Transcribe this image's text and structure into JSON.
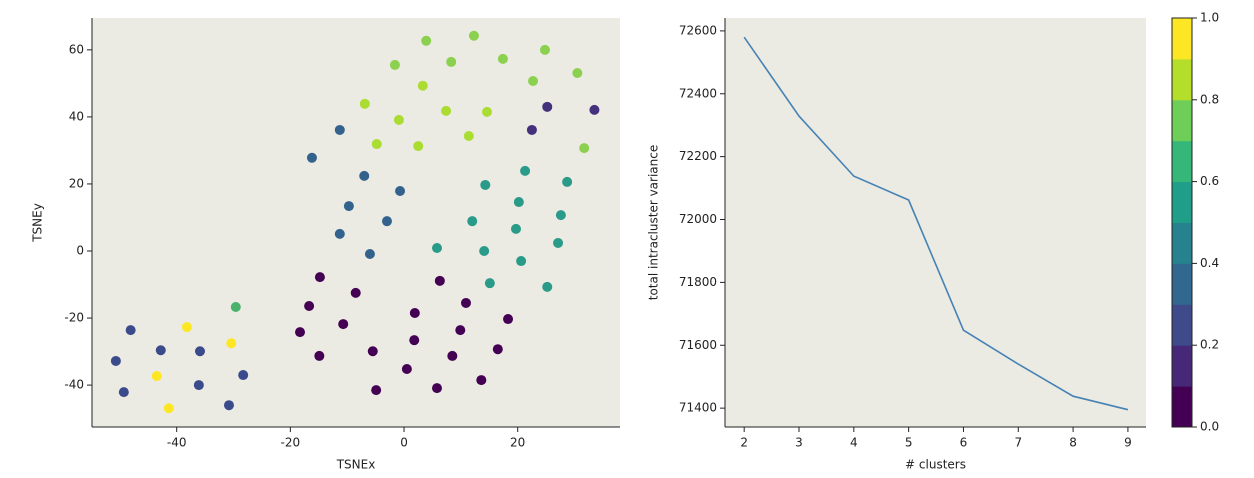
{
  "chart_data": [
    {
      "type": "scatter",
      "xlabel": "TSNEx",
      "ylabel": "TSNEy",
      "xlim": [
        -54.9,
        38
      ],
      "ylim": [
        -52.5,
        69.5
      ],
      "xticks": [
        -40,
        -20,
        0,
        20
      ],
      "yticks": [
        -40,
        -20,
        0,
        20,
        40,
        60
      ],
      "background": "#ebebe4",
      "x": [
        -38.2,
        -30.4,
        -43.5,
        -41.4,
        -29.6,
        -48.1,
        -50.7,
        -49.3,
        -42.8,
        -35.9,
        -36.1,
        -30.8,
        -28.3,
        -14.8,
        -16.7,
        -8.5,
        -18.3,
        -10.7,
        -14.9,
        -5.5,
        -4.9,
        1.9,
        1.8,
        6.3,
        10.9,
        9.9,
        8.5,
        16.5,
        18.3,
        0.5,
        5.8,
        13.6,
        -16.2,
        -11.3,
        -7.0,
        -9.7,
        -11.3,
        -3.0,
        -0.7,
        -6.0,
        -1.6,
        3.9,
        8.3,
        12.3,
        17.4,
        24.8,
        30.5,
        3.3,
        -6.9,
        -0.9,
        7.4,
        14.6,
        22.7,
        -4.8,
        2.5,
        11.4,
        31.7,
        21.3,
        14.3,
        28.7,
        20.2,
        12.0,
        19.7,
        27.6,
        5.8,
        14.1,
        27.1,
        20.6,
        15.1,
        25.2,
        25.2,
        33.5,
        22.5
      ],
      "y": [
        -22.7,
        -27.5,
        -37.3,
        -46.9,
        -16.7,
        -23.6,
        -32.8,
        -42.1,
        -29.6,
        -29.9,
        -40.0,
        -46.0,
        -37.0,
        -7.8,
        -16.4,
        -12.5,
        -24.2,
        -21.8,
        -31.3,
        -29.9,
        -41.5,
        -18.5,
        -26.6,
        -8.9,
        -15.5,
        -23.6,
        -31.3,
        -29.3,
        -20.3,
        -35.2,
        -40.9,
        -38.5,
        27.8,
        36.1,
        22.4,
        13.4,
        5.1,
        8.9,
        17.9,
        -0.9,
        55.5,
        62.7,
        56.4,
        64.2,
        57.3,
        60.0,
        53.1,
        49.3,
        43.9,
        39.1,
        41.8,
        41.5,
        50.7,
        31.9,
        31.3,
        34.3,
        30.7,
        23.9,
        19.7,
        20.6,
        14.6,
        8.9,
        6.6,
        10.7,
        0.9,
        0.0,
        2.4,
        -3.0,
        -9.6,
        -10.7,
        43.0,
        42.1,
        36.1
      ],
      "colors": [
        "#fde725",
        "#fde725",
        "#fde725",
        "#fde725",
        "#4ab26b",
        "#3b4a8b",
        "#3b4a8b",
        "#3b4a8b",
        "#3b4a8b",
        "#3b4a8b",
        "#3b4a8b",
        "#3b4a8b",
        "#3b4a8b",
        "#440154",
        "#440154",
        "#440154",
        "#440154",
        "#440154",
        "#440154",
        "#440154",
        "#440154",
        "#440154",
        "#440154",
        "#440154",
        "#440154",
        "#440154",
        "#440154",
        "#440154",
        "#440154",
        "#440154",
        "#440154",
        "#440154",
        "#33638d",
        "#33638d",
        "#33638d",
        "#33638d",
        "#33638d",
        "#33638d",
        "#33638d",
        "#33638d",
        "#8bd04f",
        "#8bd04f",
        "#8bd04f",
        "#8bd04f",
        "#8bd04f",
        "#8bd04f",
        "#8bd04f",
        "#aadc32",
        "#aadc32",
        "#aadc32",
        "#aadc32",
        "#aadc32",
        "#8bd04f",
        "#aadc32",
        "#aadc32",
        "#aadc32",
        "#8bd04f",
        "#2a9a89",
        "#2a9a89",
        "#2a9a89",
        "#2a9a89",
        "#2a9a89",
        "#2a9a89",
        "#2a9a89",
        "#2a9a89",
        "#2a9a89",
        "#2a9a89",
        "#2a9a89",
        "#2a9a89",
        "#2a9a89",
        "#45307c",
        "#45307c",
        "#45307c"
      ]
    },
    {
      "type": "line",
      "xlabel": "# clusters",
      "ylabel": "total intracluster variance",
      "xlim": [
        1.65,
        9.33
      ],
      "ylim": [
        71340,
        72641
      ],
      "xticks": [
        2,
        3,
        4,
        5,
        6,
        7,
        8,
        9
      ],
      "yticks": [
        71400,
        71600,
        71800,
        72000,
        72200,
        72400,
        72600
      ],
      "background": "#ebebe4",
      "color": "#4682b4",
      "x": [
        2,
        3,
        4,
        5,
        6,
        7,
        8,
        9
      ],
      "values": [
        72580,
        72329,
        72138,
        72062,
        71648,
        71540,
        71438,
        71395
      ]
    },
    {
      "type": "colorbar",
      "ylim": [
        0,
        1
      ],
      "yticks": [
        {
          "value": 0,
          "label": "0.0"
        },
        0.2,
        0.4,
        0.6,
        0.8,
        {
          "value": 1,
          "label": "1.0"
        }
      ],
      "colors": [
        "#440154",
        "#472878",
        "#3e4a89",
        "#31688e",
        "#26828e",
        "#1f9e89",
        "#35b779",
        "#6ece58",
        "#b5de2b",
        "#fde725"
      ]
    }
  ]
}
